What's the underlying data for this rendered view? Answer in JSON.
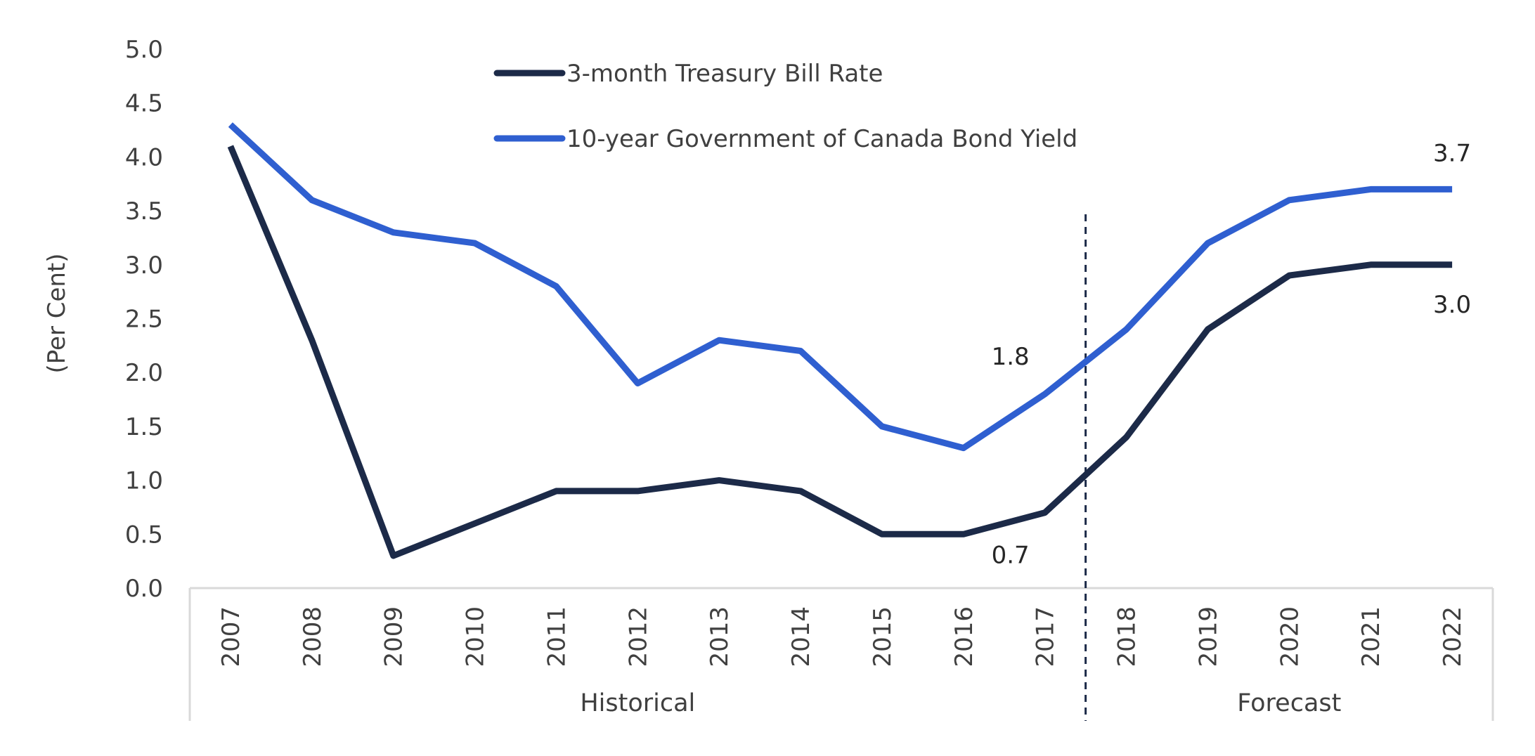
{
  "chart_data": {
    "type": "line",
    "title": "",
    "ylabel": "(Per Cent)",
    "xlabel": "",
    "ylim": [
      0,
      5
    ],
    "yticks": [
      "0.0",
      "0.5",
      "1.0",
      "1.5",
      "2.0",
      "2.5",
      "3.0",
      "3.5",
      "4.0",
      "4.5",
      "5.0"
    ],
    "grid": false,
    "legend_position": "top-center",
    "categories": [
      "2007",
      "2008",
      "2009",
      "2010",
      "2011",
      "2012",
      "2013",
      "2014",
      "2015",
      "2016",
      "2017",
      "2018",
      "2019",
      "2020",
      "2021",
      "2022"
    ],
    "groups": [
      {
        "label": "Historical",
        "from": "2007",
        "to": "2017"
      },
      {
        "label": "Forecast",
        "from": "2018",
        "to": "2022"
      }
    ],
    "series": [
      {
        "name": "3-month Treasury Bill Rate",
        "color": "#1c2a48",
        "values": [
          4.1,
          2.3,
          0.3,
          0.6,
          0.9,
          0.9,
          1.0,
          0.9,
          0.5,
          0.5,
          0.7,
          1.4,
          2.4,
          2.9,
          3.0,
          3.0
        ]
      },
      {
        "name": "10-year Government of Canada Bond Yield",
        "color": "#2f5fd0",
        "values": [
          4.3,
          3.6,
          3.3,
          3.2,
          2.8,
          1.9,
          2.3,
          2.2,
          1.5,
          1.3,
          1.8,
          2.4,
          3.2,
          3.6,
          3.7,
          3.7
        ]
      }
    ],
    "annotations": [
      {
        "text": "1.8",
        "series": 1,
        "index": 10,
        "position": "above-left"
      },
      {
        "text": "0.7",
        "series": 0,
        "index": 10,
        "position": "below-left"
      },
      {
        "text": "3.7",
        "series": 1,
        "index": 15,
        "position": "above"
      },
      {
        "text": "3.0",
        "series": 0,
        "index": 15,
        "position": "below"
      }
    ]
  }
}
